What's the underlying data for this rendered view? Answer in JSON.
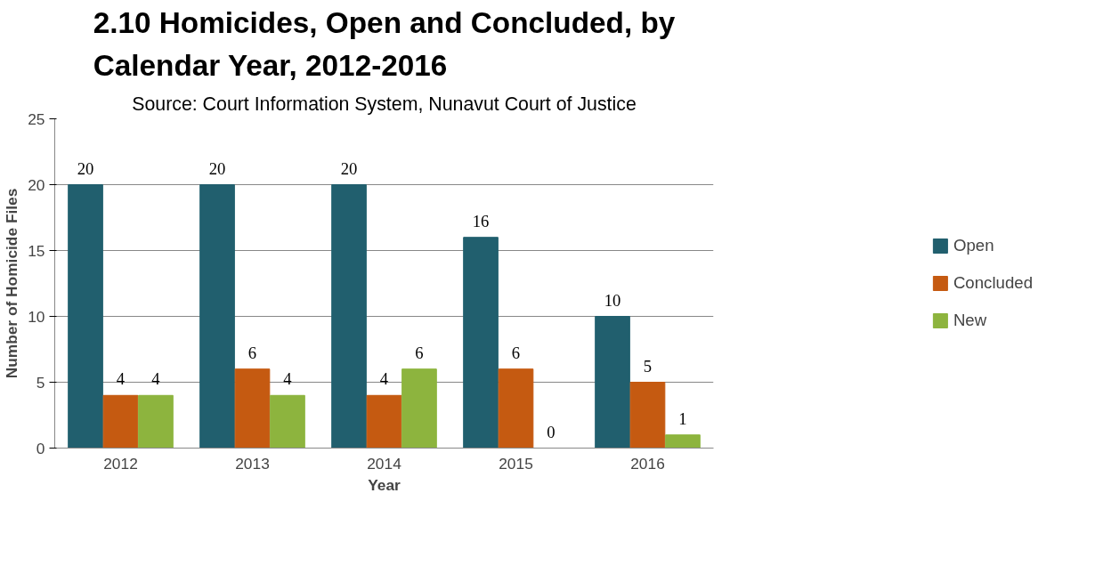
{
  "chart_data": {
    "type": "bar",
    "title": "2.10 Homicides, Open and Concluded, by Calendar Year, 2012-2016",
    "subtitle": "Source: Court Information System, Nunavut Court of Justice",
    "xlabel": "Year",
    "ylabel": "Number of Homicide Files",
    "categories": [
      "2012",
      "2013",
      "2014",
      "2015",
      "2016"
    ],
    "series": [
      {
        "name": "Open",
        "color": "#215f6e",
        "values": [
          20,
          20,
          20,
          16,
          10
        ]
      },
      {
        "name": "Concluded",
        "color": "#c55a11",
        "values": [
          4,
          6,
          4,
          6,
          5
        ]
      },
      {
        "name": "New",
        "color": "#8db43e",
        "values": [
          4,
          4,
          6,
          0,
          1
        ]
      }
    ],
    "ylim": [
      0,
      25
    ],
    "yticks": [
      0,
      5,
      10,
      15,
      20,
      25
    ],
    "grid": "y",
    "legend": "right",
    "data_labels": true
  }
}
